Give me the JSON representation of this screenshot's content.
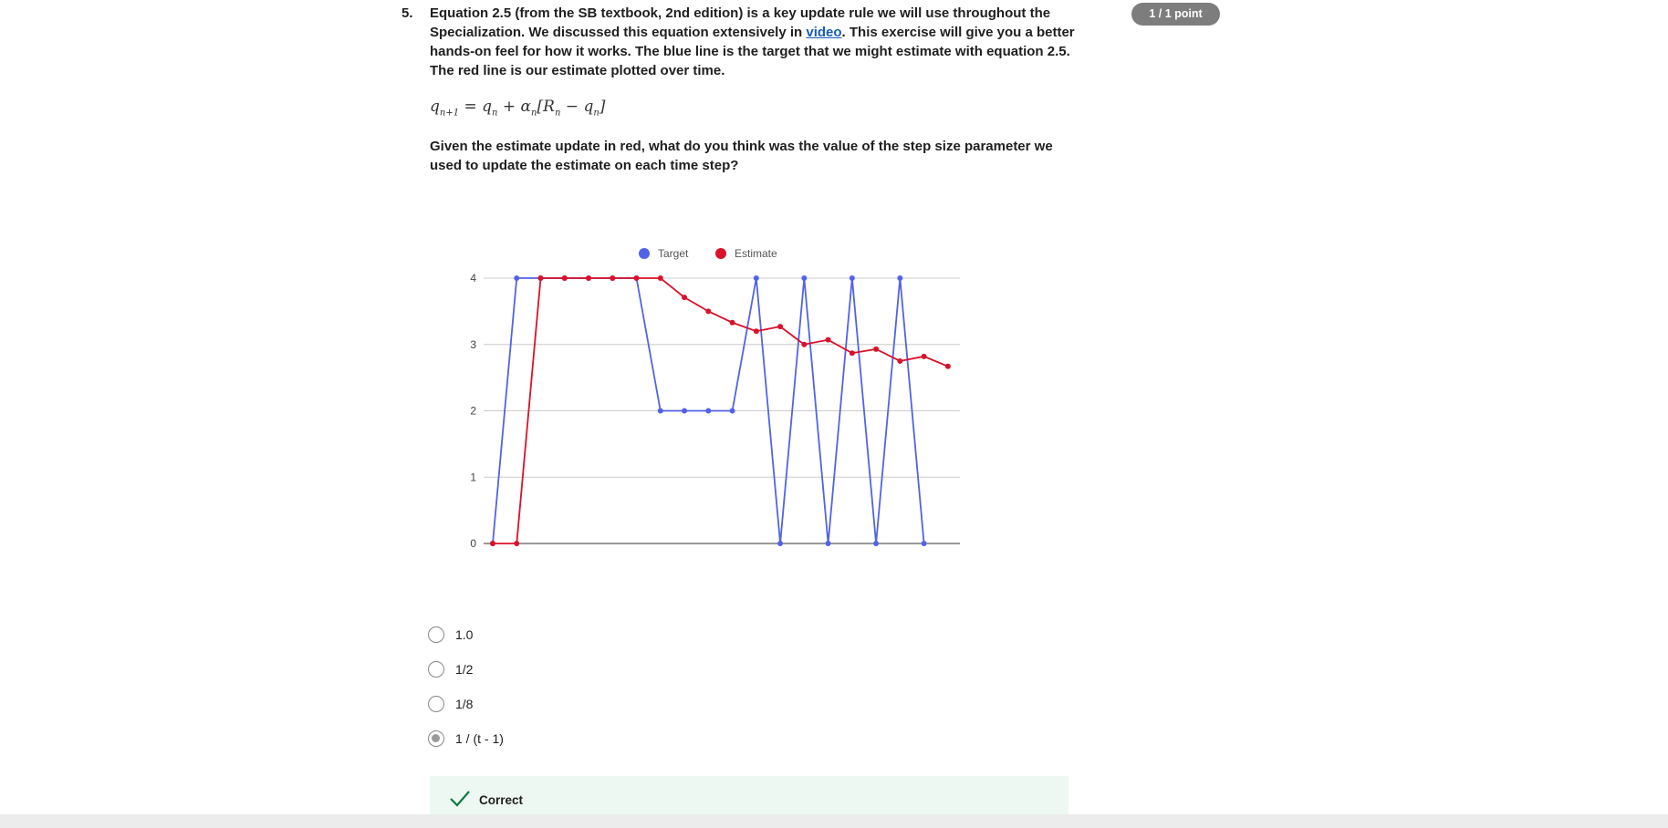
{
  "question": {
    "number": "5.",
    "points": "1 / 1 point",
    "text_before_link": "Equation 2.5 (from the SB textbook, 2nd edition) is a key update rule we will use throughout the Specialization. We discussed this equation extensively in ",
    "link_text": "video",
    "text_after_link": ". This exercise will give you a better hands-on feel for how it works. The blue line is the target that we might estimate with equation 2.5. The red line is our estimate plotted over time.",
    "prompt": "Given the estimate update in red, what do you think was the value of the step size parameter we used to update the estimate on each time step?"
  },
  "formula": {
    "q": "q",
    "sub_n1": "n+1",
    "eq": " = ",
    "sub_n": "n",
    "plus": " + ",
    "alpha": "α",
    "R": "R",
    "minus": " − ",
    "open": "[",
    "close": "]"
  },
  "chart_data": {
    "type": "line",
    "x": [
      0,
      1,
      2,
      3,
      4,
      5,
      6,
      7,
      8,
      9,
      10,
      11,
      12,
      13,
      14,
      15,
      16,
      17,
      18,
      19
    ],
    "series": [
      {
        "name": "Target",
        "color": "#5262e8",
        "values": [
          0,
          4,
          4,
          4,
          4,
          4,
          4,
          2,
          2,
          2,
          2,
          4,
          0,
          4,
          0,
          4,
          0,
          4,
          0,
          null
        ]
      },
      {
        "name": "Estimate",
        "color": "#d9122a",
        "values": [
          0,
          0,
          4,
          4,
          4,
          4,
          4,
          4,
          3.71,
          3.5,
          3.33,
          3.2,
          3.27,
          3.0,
          3.07,
          2.87,
          2.93,
          2.75,
          2.82,
          2.67
        ]
      }
    ],
    "yticks": [
      "0",
      "1",
      "2",
      "3",
      "4"
    ],
    "ylim": [
      0,
      4
    ],
    "grid": true,
    "legend": "top-center"
  },
  "options": [
    {
      "label": "1.0",
      "selected": false
    },
    {
      "label": "1/2",
      "selected": false
    },
    {
      "label": "1/8",
      "selected": false
    },
    {
      "label": "1 / (t - 1)",
      "selected": true
    }
  ],
  "feedback": {
    "status": "Correct",
    "color": "#0b7a3e"
  }
}
